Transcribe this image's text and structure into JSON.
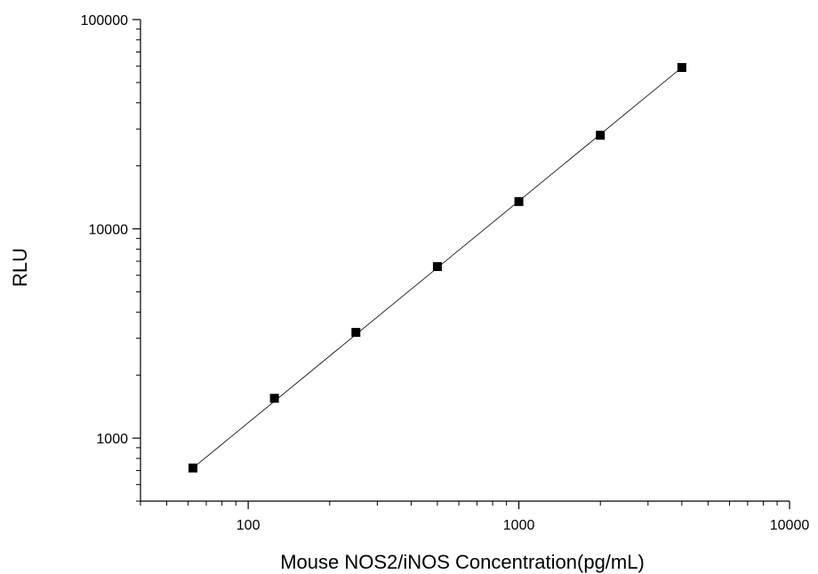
{
  "chart_data": {
    "type": "scatter",
    "title": "",
    "xlabel": "Mouse NOS2/iNOS Concentration(pg/mL)",
    "ylabel": "RLU",
    "x_scale": "log",
    "y_scale": "log",
    "xlim": [
      40,
      10000
    ],
    "ylim": [
      500,
      100000
    ],
    "x_ticks": [
      100,
      1000,
      10000
    ],
    "x_tick_labels": [
      "100",
      "1000",
      "10000"
    ],
    "y_ticks": [
      1000,
      10000,
      100000
    ],
    "y_tick_labels": [
      "1000",
      "10000",
      "100000"
    ],
    "grid": false,
    "legend": "none",
    "marker": "square",
    "marker_color": "#000000",
    "line_color": "#000000",
    "series": [
      {
        "x": [
          62.5,
          125,
          250,
          500,
          1000,
          2000,
          4000
        ],
        "y": [
          720,
          1550,
          3200,
          6600,
          13500,
          28000,
          59000
        ]
      }
    ],
    "fit_line": {
      "x": [
        62.5,
        4000
      ],
      "y": [
        720,
        59000
      ]
    }
  }
}
